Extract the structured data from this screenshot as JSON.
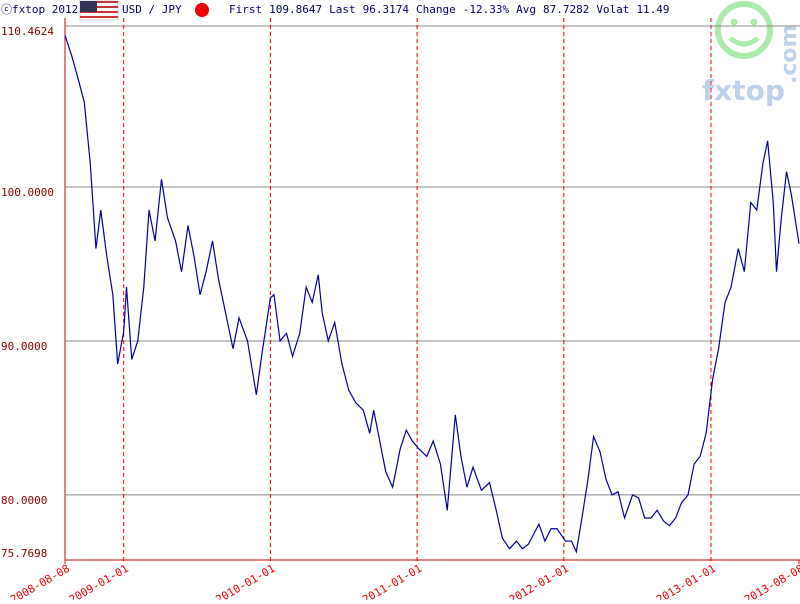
{
  "header": {
    "brand": "ⓒfxtop 2012",
    "pair": "USD / JPY",
    "stats": [
      {
        "label": "First",
        "value": 109.8647
      },
      {
        "label": "Last",
        "value": 96.3174
      },
      {
        "label": "Change",
        "value": -12.33,
        "value_label": "-12.33%"
      },
      {
        "label": "Avg",
        "value": 87.7282
      },
      {
        "label": "Volat",
        "value": 11.49
      }
    ],
    "logo": [
      "fxtop",
      ".com"
    ]
  },
  "chart_data": {
    "type": "line",
    "x": [
      "2008-08-08",
      "2008-08-25",
      "2008-09-10",
      "2008-09-25",
      "2008-10-10",
      "2008-10-24",
      "2008-11-05",
      "2008-11-20",
      "2008-12-05",
      "2008-12-17",
      "2009-01-01",
      "2009-01-08",
      "2009-01-21",
      "2009-02-05",
      "2009-02-20",
      "2009-03-05",
      "2009-03-20",
      "2009-04-05",
      "2009-04-20",
      "2009-05-10",
      "2009-05-25",
      "2009-06-10",
      "2009-06-25",
      "2009-07-10",
      "2009-07-25",
      "2009-08-10",
      "2009-08-25",
      "2009-09-10",
      "2009-09-30",
      "2009-10-15",
      "2009-11-05",
      "2009-11-27",
      "2009-12-10",
      "2010-01-01",
      "2010-01-10",
      "2010-01-25",
      "2010-02-10",
      "2010-02-25",
      "2010-03-15",
      "2010-03-31",
      "2010-04-15",
      "2010-04-30",
      "2010-05-10",
      "2010-05-25",
      "2010-06-10",
      "2010-06-28",
      "2010-07-15",
      "2010-08-01",
      "2010-08-20",
      "2010-09-05",
      "2010-09-15",
      "2010-09-30",
      "2010-10-15",
      "2010-11-01",
      "2010-11-20",
      "2010-12-05",
      "2010-12-20",
      "2011-01-05",
      "2011-01-25",
      "2011-02-10",
      "2011-02-28",
      "2011-03-17",
      "2011-03-25",
      "2011-04-06",
      "2011-04-20",
      "2011-05-05",
      "2011-05-20",
      "2011-06-10",
      "2011-06-30",
      "2011-07-15",
      "2011-08-01",
      "2011-08-19",
      "2011-09-05",
      "2011-09-20",
      "2011-10-05",
      "2011-10-31",
      "2011-11-15",
      "2011-11-30",
      "2011-12-15",
      "2012-01-05",
      "2012-01-20",
      "2012-02-01",
      "2012-02-15",
      "2012-03-01",
      "2012-03-15",
      "2012-03-31",
      "2012-04-15",
      "2012-04-30",
      "2012-05-15",
      "2012-05-31",
      "2012-06-20",
      "2012-07-05",
      "2012-07-20",
      "2012-08-05",
      "2012-08-20",
      "2012-09-05",
      "2012-09-20",
      "2012-10-05",
      "2012-10-20",
      "2012-11-05",
      "2012-11-20",
      "2012-12-05",
      "2012-12-20",
      "2013-01-05",
      "2013-01-20",
      "2013-02-05",
      "2013-02-20",
      "2013-03-10",
      "2013-03-25",
      "2013-04-10",
      "2013-04-25",
      "2013-05-10",
      "2013-05-22",
      "2013-06-05",
      "2013-06-13",
      "2013-06-25",
      "2013-07-08",
      "2013-07-20",
      "2013-08-01",
      "2013-08-08"
    ],
    "series": [
      {
        "name": "USD / JPY",
        "color": "#000099",
        "values": [
          109.86,
          108.5,
          107.0,
          105.5,
          101.5,
          96.0,
          98.5,
          95.5,
          93.0,
          88.5,
          90.6,
          93.5,
          88.8,
          90.0,
          93.5,
          98.5,
          96.5,
          100.5,
          98.0,
          96.5,
          94.5,
          97.5,
          95.5,
          93.0,
          94.5,
          96.5,
          94.0,
          92.0,
          89.5,
          91.5,
          90.0,
          86.5,
          89.0,
          92.8,
          93.0,
          90.0,
          90.5,
          89.0,
          90.5,
          93.5,
          92.5,
          94.3,
          91.8,
          90.0,
          91.2,
          88.5,
          86.8,
          86.0,
          85.5,
          84.0,
          85.5,
          83.5,
          81.5,
          80.5,
          83.0,
          84.2,
          83.5,
          83.0,
          82.5,
          83.5,
          82.0,
          79.0,
          81.5,
          85.2,
          82.5,
          80.5,
          81.8,
          80.3,
          80.8,
          79.2,
          77.2,
          76.5,
          77.0,
          76.5,
          76.8,
          78.1,
          77.0,
          77.8,
          77.8,
          77.0,
          77.0,
          76.3,
          78.5,
          81.0,
          83.8,
          82.8,
          81.0,
          80.0,
          80.2,
          78.5,
          80.0,
          79.8,
          78.5,
          78.5,
          79.0,
          78.3,
          78.0,
          78.5,
          79.5,
          80.0,
          82.0,
          82.5,
          84.0,
          87.5,
          89.5,
          92.5,
          93.5,
          96.0,
          94.5,
          99.0,
          98.5,
          101.5,
          103.0,
          99.0,
          94.5,
          98.0,
          101.0,
          99.5,
          97.5,
          96.32
        ]
      }
    ],
    "xlim": [
      "2008-08-08",
      "2013-08-08"
    ],
    "xticks": [
      "2008-08-08",
      "2009-01-01",
      "2010-01-01",
      "2011-01-01",
      "2012-01-01",
      "2013-01-01",
      "2013-08-08"
    ],
    "ylim": [
      75.7698,
      110.4624
    ],
    "yticks": [
      75.7698,
      {
        "value": 80,
        "label": "80.0000"
      },
      {
        "value": 90,
        "label": "90.0000"
      },
      {
        "value": 100,
        "label": "100.0000"
      },
      110.4624
    ],
    "grid": true
  }
}
